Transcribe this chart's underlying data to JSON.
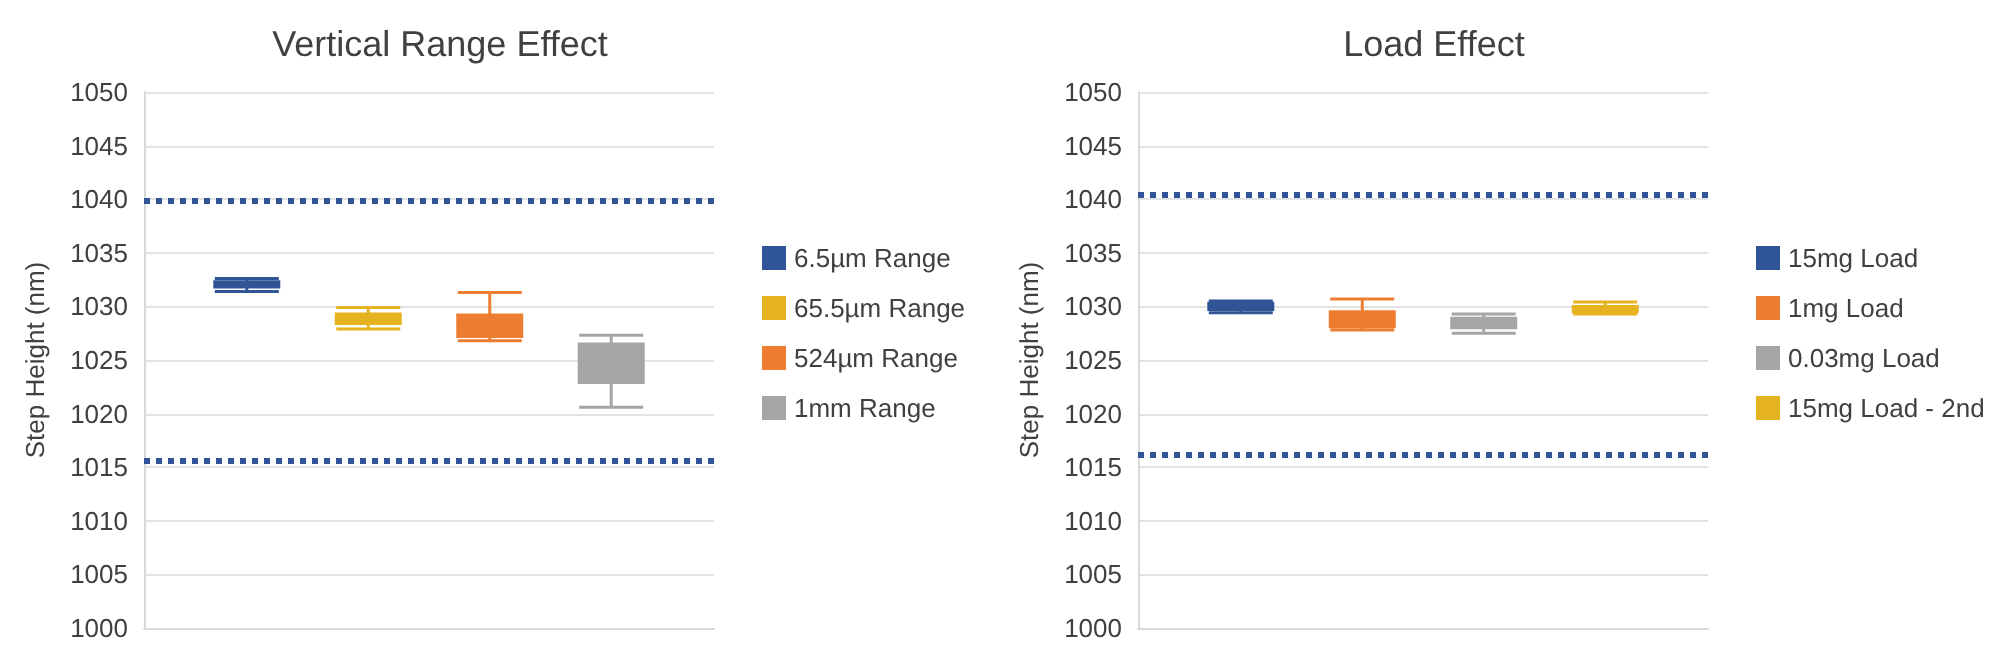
{
  "chart_data": [
    {
      "type": "box",
      "title": "Vertical Range Effect",
      "ylabel": "Step Height (nm)",
      "categories": [
        null
      ],
      "ylim": [
        1000,
        1050
      ],
      "yticks": [
        1000,
        1005,
        1010,
        1015,
        1020,
        1025,
        1030,
        1035,
        1040,
        1045,
        1050
      ],
      "grid": "y",
      "legend": "right",
      "series": [
        {
          "name": "6.5µm Range",
          "color": "#2f5597",
          "boxes": [
            {
              "low": 1031.4,
              "q1": 1031.8,
              "median": 1032,
              "q3": 1032.3,
              "high": 1032.6
            }
          ]
        },
        {
          "name": "65.5µm Range",
          "color": "#e6b320",
          "boxes": [
            {
              "low": 1027.9,
              "q1": 1028.4,
              "median": 1028.8,
              "q3": 1029.3,
              "high": 1029.9
            }
          ]
        },
        {
          "name": "524µm Range",
          "color": "#ed7d31",
          "boxes": [
            {
              "low": 1026.8,
              "q1": 1027.2,
              "median": 1028.2,
              "q3": 1029.2,
              "high": 1031.3
            }
          ]
        },
        {
          "name": "1mm Range",
          "color": "#a5a5a5",
          "boxes": [
            {
              "low": 1020.6,
              "q1": 1022.9,
              "median": 1024,
              "q3": 1026.5,
              "high": 1027.3
            }
          ]
        }
      ],
      "ref_lines": [
        {
          "axis": "y",
          "value": 1039.8,
          "color": "#2f5597",
          "line_style": "dotted"
        },
        {
          "axis": "y",
          "value": 1015.7,
          "color": "#2f5597",
          "line_style": "dotted"
        }
      ]
    },
    {
      "type": "box",
      "title": "Load Effect",
      "ylabel": "Step Height (nm)",
      "categories": [
        null
      ],
      "ylim": [
        1000,
        1050
      ],
      "yticks": [
        1000,
        1005,
        1010,
        1015,
        1020,
        1025,
        1030,
        1035,
        1040,
        1045,
        1050
      ],
      "grid": "y",
      "legend": "right",
      "series": [
        {
          "name": "15mg Load",
          "color": "#2f5597",
          "boxes": [
            {
              "low": 1029.4,
              "q1": 1029.7,
              "median": 1030,
              "q3": 1030.3,
              "high": 1030.5
            }
          ]
        },
        {
          "name": "1mg Load",
          "color": "#ed7d31",
          "boxes": [
            {
              "low": 1027.8,
              "q1": 1028.1,
              "median": 1028.8,
              "q3": 1029.5,
              "high": 1030.7
            }
          ]
        },
        {
          "name": "0.03mg Load",
          "color": "#a5a5a5",
          "boxes": [
            {
              "low": 1027.5,
              "q1": 1028,
              "median": 1028.5,
              "q3": 1028.9,
              "high": 1029.3
            }
          ]
        },
        {
          "name": "15mg Load - 2nd",
          "color": "#e6b320",
          "boxes": [
            {
              "low": 1029.3,
              "q1": 1029.5,
              "median": 1029.8,
              "q3": 1030,
              "high": 1030.4
            }
          ]
        }
      ],
      "ref_lines": [
        {
          "axis": "y",
          "value": 1040.5,
          "color": "#2f5597",
          "line_style": "dotted"
        },
        {
          "axis": "y",
          "value": 1016.2,
          "color": "#2f5597",
          "line_style": "dotted"
        }
      ]
    }
  ]
}
